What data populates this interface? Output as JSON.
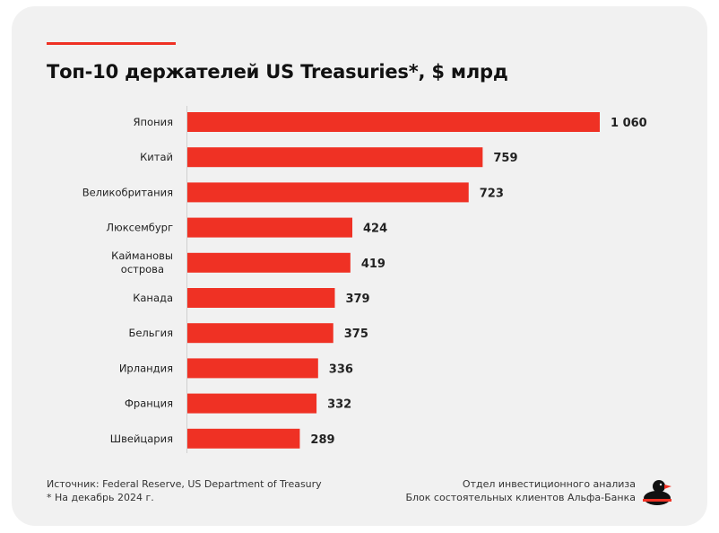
{
  "title": "Топ-10 держателей US Treasuries*, $ млрд",
  "footer": {
    "source": "Источник: Federal Reserve, US Department of Treasury",
    "note": "* На декабрь 2024 г.",
    "dept_line1": "Отдел инвестиционного анализа",
    "dept_line2": "Блок состоятельных клиентов Альфа-Банка"
  },
  "colors": {
    "accent": "#ef3124",
    "background": "#f1f1f1",
    "text": "#222222"
  },
  "icons": {
    "logo": "duck-logo-icon"
  },
  "chart_data": {
    "type": "bar",
    "orientation": "horizontal",
    "title": "Топ-10 держателей US Treasuries*, $ млрд",
    "categories": [
      "Япония",
      "Китай",
      "Великобритания",
      "Люксембург",
      "Каймановы острова",
      "Канада",
      "Бельгия",
      "Ирландия",
      "Франция",
      "Швейцария"
    ],
    "values": [
      1060,
      759,
      723,
      424,
      419,
      379,
      375,
      336,
      332,
      289
    ],
    "value_labels": [
      "1 060",
      "759",
      "723",
      "424",
      "419",
      "379",
      "375",
      "336",
      "332",
      "289"
    ],
    "xlim": [
      0,
      1060
    ],
    "grid": false,
    "legend": "none",
    "bar_color": "#ef3124"
  }
}
